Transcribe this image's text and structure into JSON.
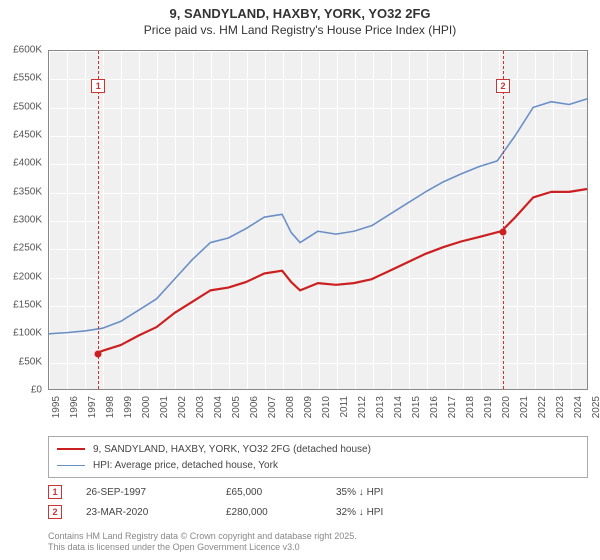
{
  "title": {
    "line1": "9, SANDYLAND, HAXBY, YORK, YO32 2FG",
    "line2": "Price paid vs. HM Land Registry's House Price Index (HPI)"
  },
  "chart": {
    "background": "#f0f0f0",
    "grid_color": "#ffffff",
    "x_years": [
      1995,
      1996,
      1997,
      1998,
      1999,
      2000,
      2001,
      2002,
      2003,
      2004,
      2005,
      2006,
      2007,
      2008,
      2009,
      2010,
      2011,
      2012,
      2013,
      2014,
      2015,
      2016,
      2017,
      2018,
      2019,
      2020,
      2021,
      2022,
      2023,
      2024,
      2025
    ],
    "y_min": 0,
    "y_max": 600000,
    "y_step": 50000,
    "y_ticks": [
      "£0",
      "£50K",
      "£100K",
      "£150K",
      "£200K",
      "£250K",
      "£300K",
      "£350K",
      "£400K",
      "£450K",
      "£500K",
      "£550K",
      "£600K"
    ],
    "series": [
      {
        "name": "price_paid",
        "label": "9, SANDYLAND, HAXBY, YORK, YO32 2FG (detached house)",
        "color": "#cc1f1f",
        "width": 2.2,
        "points": [
          [
            1997.74,
            65000
          ],
          [
            1998,
            68000
          ],
          [
            1999,
            78000
          ],
          [
            2000,
            95000
          ],
          [
            2001,
            110000
          ],
          [
            2002,
            135000
          ],
          [
            2003,
            155000
          ],
          [
            2004,
            175000
          ],
          [
            2005,
            180000
          ],
          [
            2006,
            190000
          ],
          [
            2007,
            205000
          ],
          [
            2008,
            210000
          ],
          [
            2008.5,
            190000
          ],
          [
            2009,
            175000
          ],
          [
            2010,
            188000
          ],
          [
            2011,
            185000
          ],
          [
            2012,
            188000
          ],
          [
            2013,
            195000
          ],
          [
            2014,
            210000
          ],
          [
            2015,
            225000
          ],
          [
            2016,
            240000
          ],
          [
            2017,
            252000
          ],
          [
            2018,
            262000
          ],
          [
            2019,
            270000
          ],
          [
            2020.22,
            280000
          ],
          [
            2021,
            305000
          ],
          [
            2022,
            340000
          ],
          [
            2023,
            350000
          ],
          [
            2024,
            350000
          ],
          [
            2025,
            355000
          ]
        ]
      },
      {
        "name": "hpi",
        "label": "HPI: Average price, detached house, York",
        "color": "#6a8fc7",
        "width": 1.6,
        "points": [
          [
            1995,
            98000
          ],
          [
            1996,
            100000
          ],
          [
            1997,
            103000
          ],
          [
            1998,
            108000
          ],
          [
            1999,
            120000
          ],
          [
            2000,
            140000
          ],
          [
            2001,
            160000
          ],
          [
            2002,
            195000
          ],
          [
            2003,
            230000
          ],
          [
            2004,
            260000
          ],
          [
            2005,
            268000
          ],
          [
            2006,
            285000
          ],
          [
            2007,
            305000
          ],
          [
            2008,
            310000
          ],
          [
            2008.5,
            278000
          ],
          [
            2009,
            260000
          ],
          [
            2010,
            280000
          ],
          [
            2011,
            275000
          ],
          [
            2012,
            280000
          ],
          [
            2013,
            290000
          ],
          [
            2014,
            310000
          ],
          [
            2015,
            330000
          ],
          [
            2016,
            350000
          ],
          [
            2017,
            368000
          ],
          [
            2018,
            382000
          ],
          [
            2019,
            395000
          ],
          [
            2020,
            405000
          ],
          [
            2021,
            450000
          ],
          [
            2022,
            500000
          ],
          [
            2023,
            510000
          ],
          [
            2024,
            505000
          ],
          [
            2025,
            515000
          ]
        ]
      }
    ],
    "markers": [
      {
        "id": "1",
        "x": 1997.74,
        "y": 65000,
        "label_y_offset": 28,
        "point_color": "#cc1f1f"
      },
      {
        "id": "2",
        "x": 2020.22,
        "y": 280000,
        "label_y_offset": 28,
        "point_color": "#cc1f1f"
      }
    ]
  },
  "legend": {
    "items": [
      {
        "color": "#cc1f1f",
        "width": 2.2,
        "text": "9, SANDYLAND, HAXBY, YORK, YO32 2FG (detached house)"
      },
      {
        "color": "#6a8fc7",
        "width": 1.6,
        "text": "HPI: Average price, detached house, York"
      }
    ]
  },
  "sales": [
    {
      "id": "1",
      "date": "26-SEP-1997",
      "price": "£65,000",
      "delta": "35% ↓ HPI"
    },
    {
      "id": "2",
      "date": "23-MAR-2020",
      "price": "£280,000",
      "delta": "32% ↓ HPI"
    }
  ],
  "footer": {
    "line1": "Contains HM Land Registry data © Crown copyright and database right 2025.",
    "line2": "This data is licensed under the Open Government Licence v3.0"
  }
}
